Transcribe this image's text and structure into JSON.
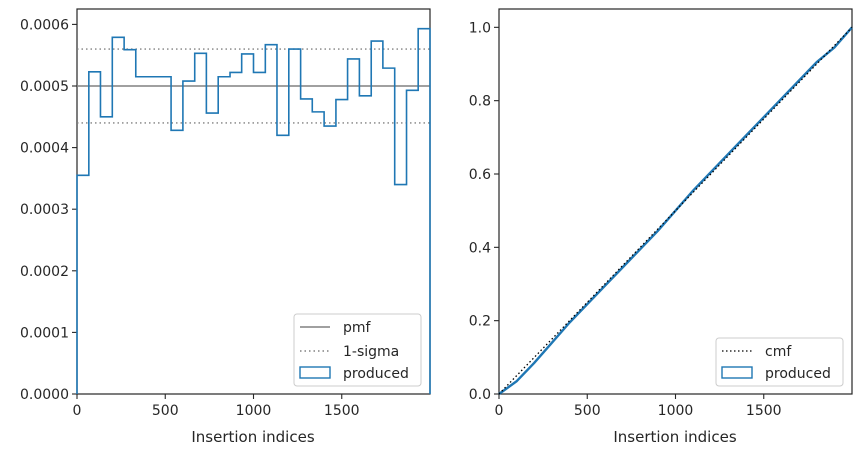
{
  "chart_data": [
    {
      "type": "step",
      "xlabel": "Insertion indices",
      "ylabel": "",
      "xlim": [
        0,
        2000
      ],
      "ylim": [
        0,
        0.000625
      ],
      "x_ticks": [
        0,
        500,
        1000,
        1500
      ],
      "x_tick_labels": [
        "0",
        "500",
        "1000",
        "1500"
      ],
      "y_ticks": [
        0,
        0.0001,
        0.0002,
        0.0003,
        0.0004,
        0.0005,
        0.0006
      ],
      "y_tick_labels": [
        "0.0000",
        "0.0001",
        "0.0002",
        "0.0003",
        "0.0004",
        "0.0005",
        "0.0006"
      ],
      "legend_position": "lower-right",
      "pmf": {
        "name": "pmf",
        "value": 0.0005,
        "color": "#808080"
      },
      "sigma": {
        "name": "1-sigma",
        "values": [
          0.00044,
          0.00056
        ],
        "color": "#808080"
      },
      "histogram": {
        "name": "produced",
        "color": "#1f77b4",
        "bin_edges": [
          0,
          67,
          133,
          200,
          267,
          333,
          400,
          467,
          533,
          600,
          667,
          733,
          800,
          867,
          933,
          1000,
          1067,
          1133,
          1200,
          1267,
          1333,
          1400,
          1467,
          1533,
          1600,
          1667,
          1733,
          1800,
          1867,
          1933,
          2000
        ],
        "values": [
          0.000355,
          0.000523,
          0.00045,
          0.000579,
          0.000559,
          0.000515,
          0.000515,
          0.000515,
          0.000428,
          0.000508,
          0.000553,
          0.000456,
          0.000515,
          0.000522,
          0.000552,
          0.000522,
          0.000567,
          0.00042,
          0.00056,
          0.000479,
          0.000458,
          0.000435,
          0.000478,
          0.000544,
          0.000484,
          0.000573,
          0.000529,
          0.00034,
          0.000493,
          0.000593
        ]
      }
    },
    {
      "type": "line",
      "xlabel": "Insertion indices",
      "ylabel": "",
      "xlim": [
        0,
        2000
      ],
      "ylim": [
        0,
        1.05
      ],
      "x_ticks": [
        0,
        500,
        1000,
        1500
      ],
      "x_tick_labels": [
        "0",
        "500",
        "1000",
        "1500"
      ],
      "y_ticks": [
        0,
        0.2,
        0.4,
        0.6,
        0.8,
        1.0
      ],
      "y_tick_labels": [
        "0.0",
        "0.2",
        "0.4",
        "0.6",
        "0.8",
        "1.0"
      ],
      "legend_position": "lower-right",
      "cmf": {
        "name": "cmf",
        "x": [
          0,
          2000
        ],
        "y": [
          0,
          1.0
        ],
        "color": "#000000"
      },
      "produced": {
        "name": "produced",
        "color": "#1f77b4",
        "x": [
          0,
          100,
          200,
          300,
          400,
          500,
          600,
          700,
          800,
          900,
          1000,
          1100,
          1200,
          1300,
          1400,
          1500,
          1600,
          1700,
          1800,
          1900,
          2000
        ],
        "y": [
          0,
          0.035,
          0.085,
          0.14,
          0.195,
          0.245,
          0.295,
          0.345,
          0.395,
          0.445,
          0.5,
          0.555,
          0.605,
          0.655,
          0.705,
          0.755,
          0.805,
          0.855,
          0.905,
          0.945,
          1.0
        ]
      }
    }
  ]
}
